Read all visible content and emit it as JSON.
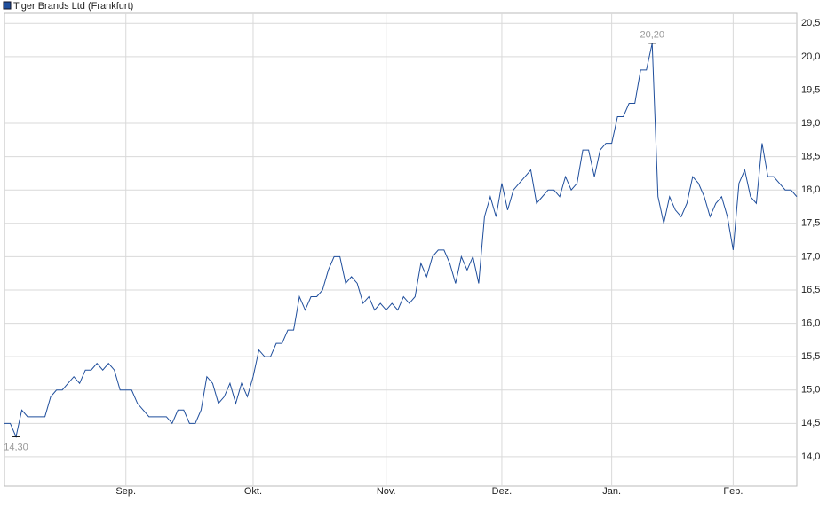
{
  "chart_data": {
    "type": "line",
    "legend": "top-left",
    "grid": true,
    "categories": [
      null,
      null,
      null,
      null,
      null,
      null,
      null,
      null,
      null,
      null,
      null,
      null,
      null,
      null,
      null,
      null,
      null,
      null,
      null,
      null,
      null,
      "Sep.",
      null,
      null,
      null,
      null,
      null,
      null,
      null,
      null,
      null,
      null,
      null,
      null,
      null,
      null,
      null,
      null,
      null,
      null,
      null,
      null,
      null,
      "Okt.",
      null,
      null,
      null,
      null,
      null,
      null,
      null,
      null,
      null,
      null,
      null,
      null,
      null,
      null,
      null,
      null,
      null,
      null,
      null,
      null,
      null,
      null,
      "Nov.",
      null,
      null,
      null,
      null,
      null,
      null,
      null,
      null,
      null,
      null,
      null,
      null,
      null,
      null,
      null,
      null,
      null,
      null,
      null,
      "Dez.",
      null,
      null,
      null,
      null,
      null,
      null,
      null,
      null,
      null,
      null,
      null,
      null,
      null,
      null,
      null,
      null,
      null,
      null,
      "Jan.",
      null,
      null,
      null,
      null,
      null,
      null,
      null,
      null,
      null,
      null,
      null,
      null,
      null,
      null,
      null,
      null,
      null,
      null,
      null,
      null,
      "Feb.",
      null,
      null,
      null,
      null,
      null,
      null,
      null,
      null,
      null,
      null,
      null
    ],
    "series": [
      {
        "name": "Tiger Brands Ltd (Frankfurt)",
        "color": "#1f4e9c",
        "values": [
          14.5,
          14.5,
          14.3,
          14.7,
          14.6,
          14.6,
          14.6,
          14.6,
          14.9,
          15.0,
          15.0,
          15.1,
          15.2,
          15.1,
          15.3,
          15.3,
          15.4,
          15.3,
          15.4,
          15.3,
          15.0,
          15.0,
          15.0,
          14.8,
          14.7,
          14.6,
          14.6,
          14.6,
          14.6,
          14.5,
          14.7,
          14.7,
          14.5,
          14.5,
          14.7,
          15.2,
          15.1,
          14.8,
          14.9,
          15.1,
          14.8,
          15.1,
          14.9,
          15.2,
          15.6,
          15.5,
          15.5,
          15.7,
          15.7,
          15.9,
          15.9,
          16.4,
          16.2,
          16.4,
          16.4,
          16.5,
          16.8,
          17.0,
          17.0,
          16.6,
          16.7,
          16.6,
          16.3,
          16.4,
          16.2,
          16.3,
          16.2,
          16.3,
          16.2,
          16.4,
          16.3,
          16.4,
          16.9,
          16.7,
          17.0,
          17.1,
          17.1,
          16.9,
          16.6,
          17.0,
          16.8,
          17.0,
          16.6,
          17.6,
          17.9,
          17.6,
          18.1,
          17.7,
          18.0,
          18.1,
          18.2,
          18.3,
          17.8,
          17.9,
          18.0,
          18.0,
          17.9,
          18.2,
          18.0,
          18.1,
          18.6,
          18.6,
          18.2,
          18.6,
          18.7,
          18.7,
          19.1,
          19.1,
          19.3,
          19.3,
          19.8,
          19.8,
          20.2,
          17.9,
          17.5,
          17.9,
          17.7,
          17.6,
          17.8,
          18.2,
          18.1,
          17.9,
          17.6,
          17.8,
          17.9,
          17.6,
          17.1,
          18.1,
          18.3,
          17.9,
          17.8,
          18.7,
          18.2,
          18.2,
          18.1,
          18.0,
          18.0,
          17.9
        ]
      }
    ],
    "annotations": [
      {
        "label": "20,20",
        "value": 20.2,
        "position": "above"
      },
      {
        "label": "14,30",
        "value": 14.3,
        "position": "below"
      }
    ],
    "ylim": [
      13.6,
      20.65
    ],
    "yticks": [
      {
        "value": 14.0,
        "label": "14,0"
      },
      {
        "value": 14.5,
        "label": "14,5"
      },
      {
        "value": 15.0,
        "label": "15,0"
      },
      {
        "value": 15.5,
        "label": "15,5"
      },
      {
        "value": 16.0,
        "label": "16,0"
      },
      {
        "value": 16.5,
        "label": "16,5"
      },
      {
        "value": 17.0,
        "label": "17,0"
      },
      {
        "value": 17.5,
        "label": "17,5"
      },
      {
        "value": 18.0,
        "label": "18,0"
      },
      {
        "value": 18.5,
        "label": "18,5"
      },
      {
        "value": 19.0,
        "label": "19,0"
      },
      {
        "value": 19.5,
        "label": "19,5"
      },
      {
        "value": 20.0,
        "label": "20,0"
      },
      {
        "value": 20.5,
        "label": "20,5"
      }
    ]
  }
}
